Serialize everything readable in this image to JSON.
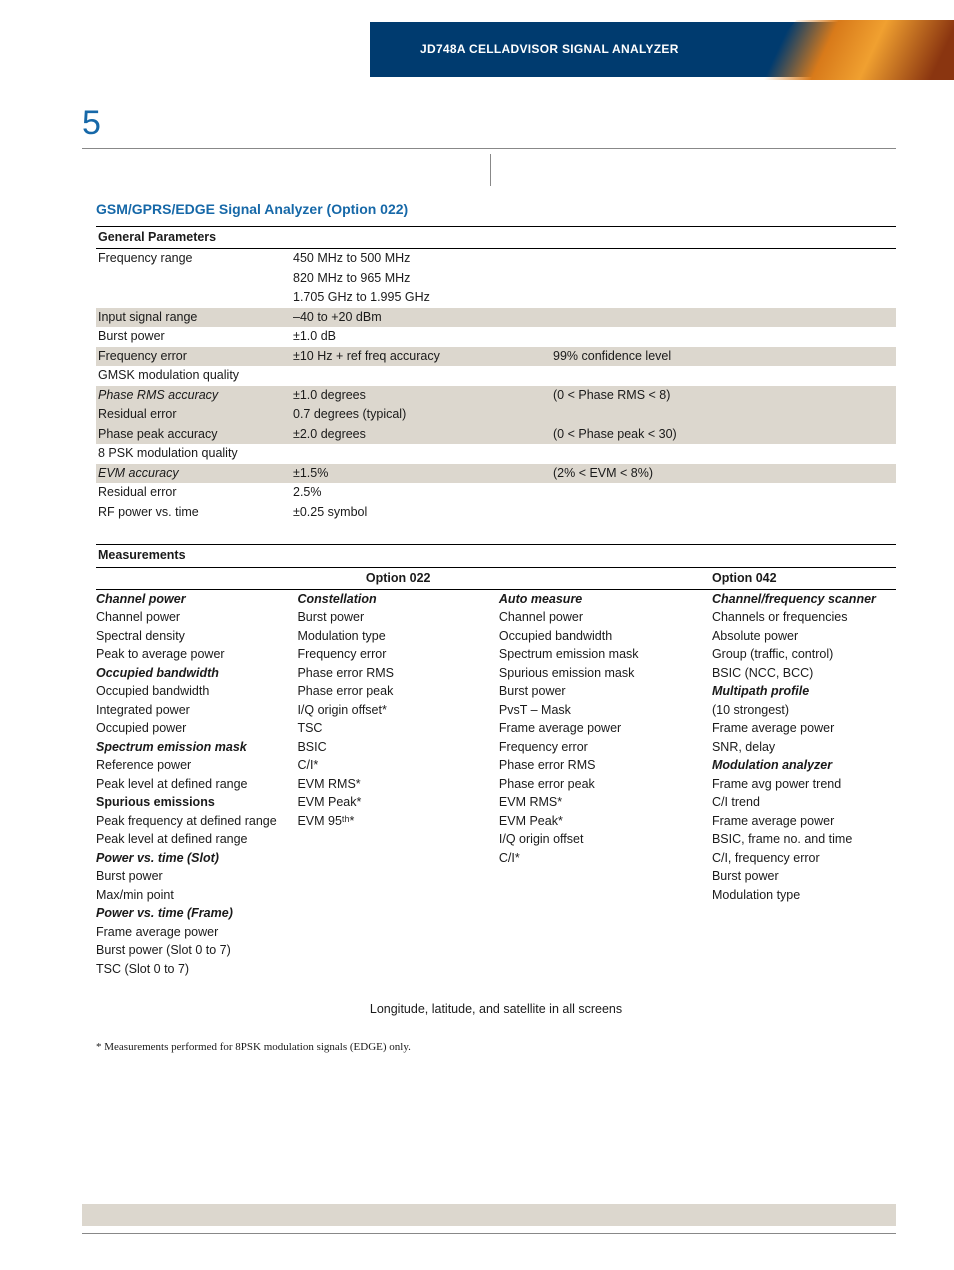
{
  "header": {
    "title": "JD748A CELLADVISOR SIGNAL ANALYZER"
  },
  "page_number": "5",
  "section_title": "GSM/GPRS/EDGE Signal Analyzer (Option 022)",
  "general": {
    "header": "General Parameters",
    "rows": [
      {
        "c1": "Frequency range",
        "c2": "450 MHz to 500 MHz",
        "shaded": false
      },
      {
        "c1": "",
        "c2": "820 MHz to 965 MHz",
        "shaded": false
      },
      {
        "c1": "",
        "c2": "1.705 GHz to 1.995 GHz",
        "shaded": false
      },
      {
        "c1": "Input signal range",
        "c2": "–40 to +20 dBm",
        "shaded": true
      },
      {
        "c1": "Burst power",
        "c2": "±1.0 dB",
        "shaded": false
      },
      {
        "c1": "Frequency error",
        "c2": "±10 Hz + ref freq accuracy",
        "c3": "99% confidence level",
        "shaded": true
      },
      {
        "c1": "GMSK modulation quality",
        "shaded": false
      },
      {
        "c1": "Phase RMS accuracy",
        "c1_italic": true,
        "c2": "±1.0 degrees",
        "c3": "(0 < Phase RMS < 8)",
        "shaded": true
      },
      {
        "c1": "Residual error",
        "c2": "0.7 degrees (typical)",
        "shaded": true
      },
      {
        "c1": "Phase peak accuracy",
        "c2": "±2.0 degrees",
        "c3": "(0 < Phase peak < 30)",
        "shaded": true
      },
      {
        "c1": "8 PSK modulation quality",
        "shaded": false
      },
      {
        "c1": "EVM accuracy",
        "c1_italic": true,
        "c2": "±1.5%",
        "c3": "(2% < EVM < 8%)",
        "shaded": true
      },
      {
        "c1": "Residual error",
        "c2": "2.5%",
        "shaded": false
      },
      {
        "c1": "RF power vs. time",
        "c2": "±0.25 symbol",
        "shaded": false
      }
    ]
  },
  "measurements": {
    "header": "Measurements",
    "opt022": "Option 022",
    "opt042": "Option 042",
    "col1": [
      {
        "t": "Channel power",
        "cls": "bi"
      },
      {
        "t": "Channel power"
      },
      {
        "t": "Spectral density"
      },
      {
        "t": "Peak to average power"
      },
      {
        "t": "Occupied bandwidth",
        "cls": "bi"
      },
      {
        "t": "Occupied bandwidth"
      },
      {
        "t": "Integrated power"
      },
      {
        "t": "Occupied power"
      },
      {
        "t": "Spectrum emission mask",
        "cls": "bi"
      },
      {
        "t": "Reference power"
      },
      {
        "t": "Peak level at defined range"
      },
      {
        "t": "Spurious emissions",
        "cls": "b"
      },
      {
        "t": "Peak frequency at defined range"
      },
      {
        "t": "Peak level at defined range"
      },
      {
        "t": "Power vs. time (Slot)",
        "cls": "bi"
      },
      {
        "t": "Burst power"
      },
      {
        "t": "Max/min point"
      },
      {
        "t": "Power vs. time (Frame)",
        "cls": "bi"
      },
      {
        "t": "Frame average power"
      },
      {
        "t": "Burst power (Slot 0 to 7)"
      },
      {
        "t": "TSC (Slot 0 to 7)"
      }
    ],
    "col2": [
      {
        "t": "Constellation",
        "cls": "bi"
      },
      {
        "t": "Burst power"
      },
      {
        "t": "Modulation type"
      },
      {
        "t": "Frequency error"
      },
      {
        "t": "Phase error RMS"
      },
      {
        "t": "Phase error peak"
      },
      {
        "t": "I/Q origin offset*"
      },
      {
        "t": "TSC"
      },
      {
        "t": "BSIC"
      },
      {
        "t": "C/I*"
      },
      {
        "t": "EVM RMS*"
      },
      {
        "t": "EVM Peak*"
      },
      {
        "t": "EVM 95ᵗʰ*"
      }
    ],
    "col3": [
      {
        "t": "Auto measure",
        "cls": "bi"
      },
      {
        "t": "Channel power"
      },
      {
        "t": "Occupied bandwidth"
      },
      {
        "t": "Spectrum emission mask"
      },
      {
        "t": "Spurious emission mask"
      },
      {
        "t": "Burst power"
      },
      {
        "t": "PvsT – Mask"
      },
      {
        "t": "Frame average power"
      },
      {
        "t": "Frequency error"
      },
      {
        "t": "Phase error RMS"
      },
      {
        "t": "Phase error peak"
      },
      {
        "t": "EVM RMS*"
      },
      {
        "t": "EVM Peak*"
      },
      {
        "t": "I/Q origin offset"
      },
      {
        "t": "C/I*"
      }
    ],
    "col4": [
      {
        "t": "Channel/frequency scanner",
        "cls": "bi"
      },
      {
        "t": "Channels or frequencies"
      },
      {
        "t": "Absolute power"
      },
      {
        "t": "Group (traffic, control)"
      },
      {
        "t": "BSIC (NCC, BCC)"
      },
      {
        "t": "Multipath profile",
        "cls": "bi"
      },
      {
        "t": "(10 strongest)"
      },
      {
        "t": "Frame average power"
      },
      {
        "t": "SNR, delay"
      },
      {
        "t": "Modulation analyzer",
        "cls": "bi"
      },
      {
        "t": "Frame avg power trend"
      },
      {
        "t": "C/I trend"
      },
      {
        "t": "Frame average power"
      },
      {
        "t": "BSIC, frame no. and time"
      },
      {
        "t": "C/I, frequency error"
      },
      {
        "t": "Burst power"
      },
      {
        "t": "Modulation type"
      }
    ],
    "footer_note": "Longitude, latitude, and satellite in all screens",
    "footnote": "* Measurements performed for 8PSK modulation signals (EDGE) only."
  }
}
